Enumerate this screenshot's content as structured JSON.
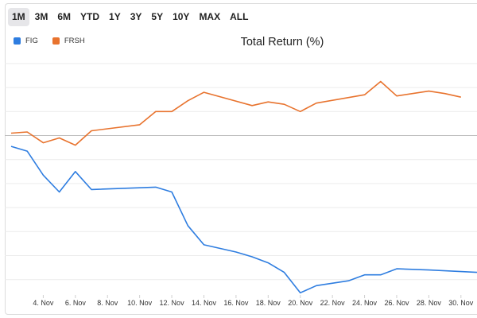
{
  "range_selector": {
    "buttons": [
      "1M",
      "3M",
      "6M",
      "YTD",
      "1Y",
      "3Y",
      "5Y",
      "10Y",
      "MAX",
      "ALL"
    ],
    "active": "1M"
  },
  "chart_data": {
    "type": "line",
    "title": "Total Return (%)",
    "xlabel": "",
    "ylabel": "",
    "x": [
      2,
      3,
      4,
      5,
      6,
      7,
      8,
      9,
      10,
      11,
      12,
      13,
      14,
      15,
      16,
      17,
      18,
      19,
      20,
      21,
      22,
      23,
      24,
      25,
      26,
      27,
      28,
      29,
      30,
      31
    ],
    "x_tick_labels": [
      "4. Nov",
      "6. Nov",
      "8. Nov",
      "10. Nov",
      "12. Nov",
      "14. Nov",
      "16. Nov",
      "18. Nov",
      "20. Nov",
      "22. Nov",
      "24. Nov",
      "26. Nov",
      "28. Nov",
      "30. Nov"
    ],
    "x_ticks": [
      4,
      6,
      8,
      10,
      12,
      14,
      16,
      18,
      20,
      22,
      24,
      26,
      28,
      30
    ],
    "ylim": [
      -6.5,
      3.3
    ],
    "grid": true,
    "legend_position": "top-left",
    "series": [
      {
        "name": "FIG",
        "color": "#2e7de0",
        "points": [
          [
            2,
            -0.45
          ],
          [
            3,
            -0.65
          ],
          [
            4,
            -1.65
          ],
          [
            5,
            -2.35
          ],
          [
            6,
            -1.5
          ],
          [
            7,
            -2.25
          ],
          [
            11,
            -2.15
          ],
          [
            12,
            -2.35
          ],
          [
            13,
            -3.75
          ],
          [
            14,
            -4.55
          ],
          [
            16,
            -4.85
          ],
          [
            17,
            -5.05
          ],
          [
            18,
            -5.3
          ],
          [
            19,
            -5.7
          ],
          [
            20,
            -6.55
          ],
          [
            21,
            -6.25
          ],
          [
            23,
            -6.05
          ],
          [
            24,
            -5.8
          ],
          [
            25,
            -5.8
          ],
          [
            26,
            -5.55
          ],
          [
            28,
            -5.6
          ],
          [
            31,
            -5.7
          ]
        ]
      },
      {
        "name": "FRSH",
        "color": "#e8732e",
        "points": [
          [
            2,
            0.1
          ],
          [
            3,
            0.15
          ],
          [
            4,
            -0.3
          ],
          [
            5,
            -0.1
          ],
          [
            6,
            -0.4
          ],
          [
            7,
            0.2
          ],
          [
            10,
            0.45
          ],
          [
            11,
            1.0
          ],
          [
            12,
            1.0
          ],
          [
            13,
            1.45
          ],
          [
            14,
            1.8
          ],
          [
            17,
            1.25
          ],
          [
            18,
            1.4
          ],
          [
            19,
            1.3
          ],
          [
            20,
            1.0
          ],
          [
            21,
            1.35
          ],
          [
            24,
            1.7
          ],
          [
            25,
            2.25
          ],
          [
            26,
            1.65
          ],
          [
            28,
            1.85
          ],
          [
            29,
            1.75
          ],
          [
            30,
            1.6
          ]
        ]
      }
    ]
  }
}
